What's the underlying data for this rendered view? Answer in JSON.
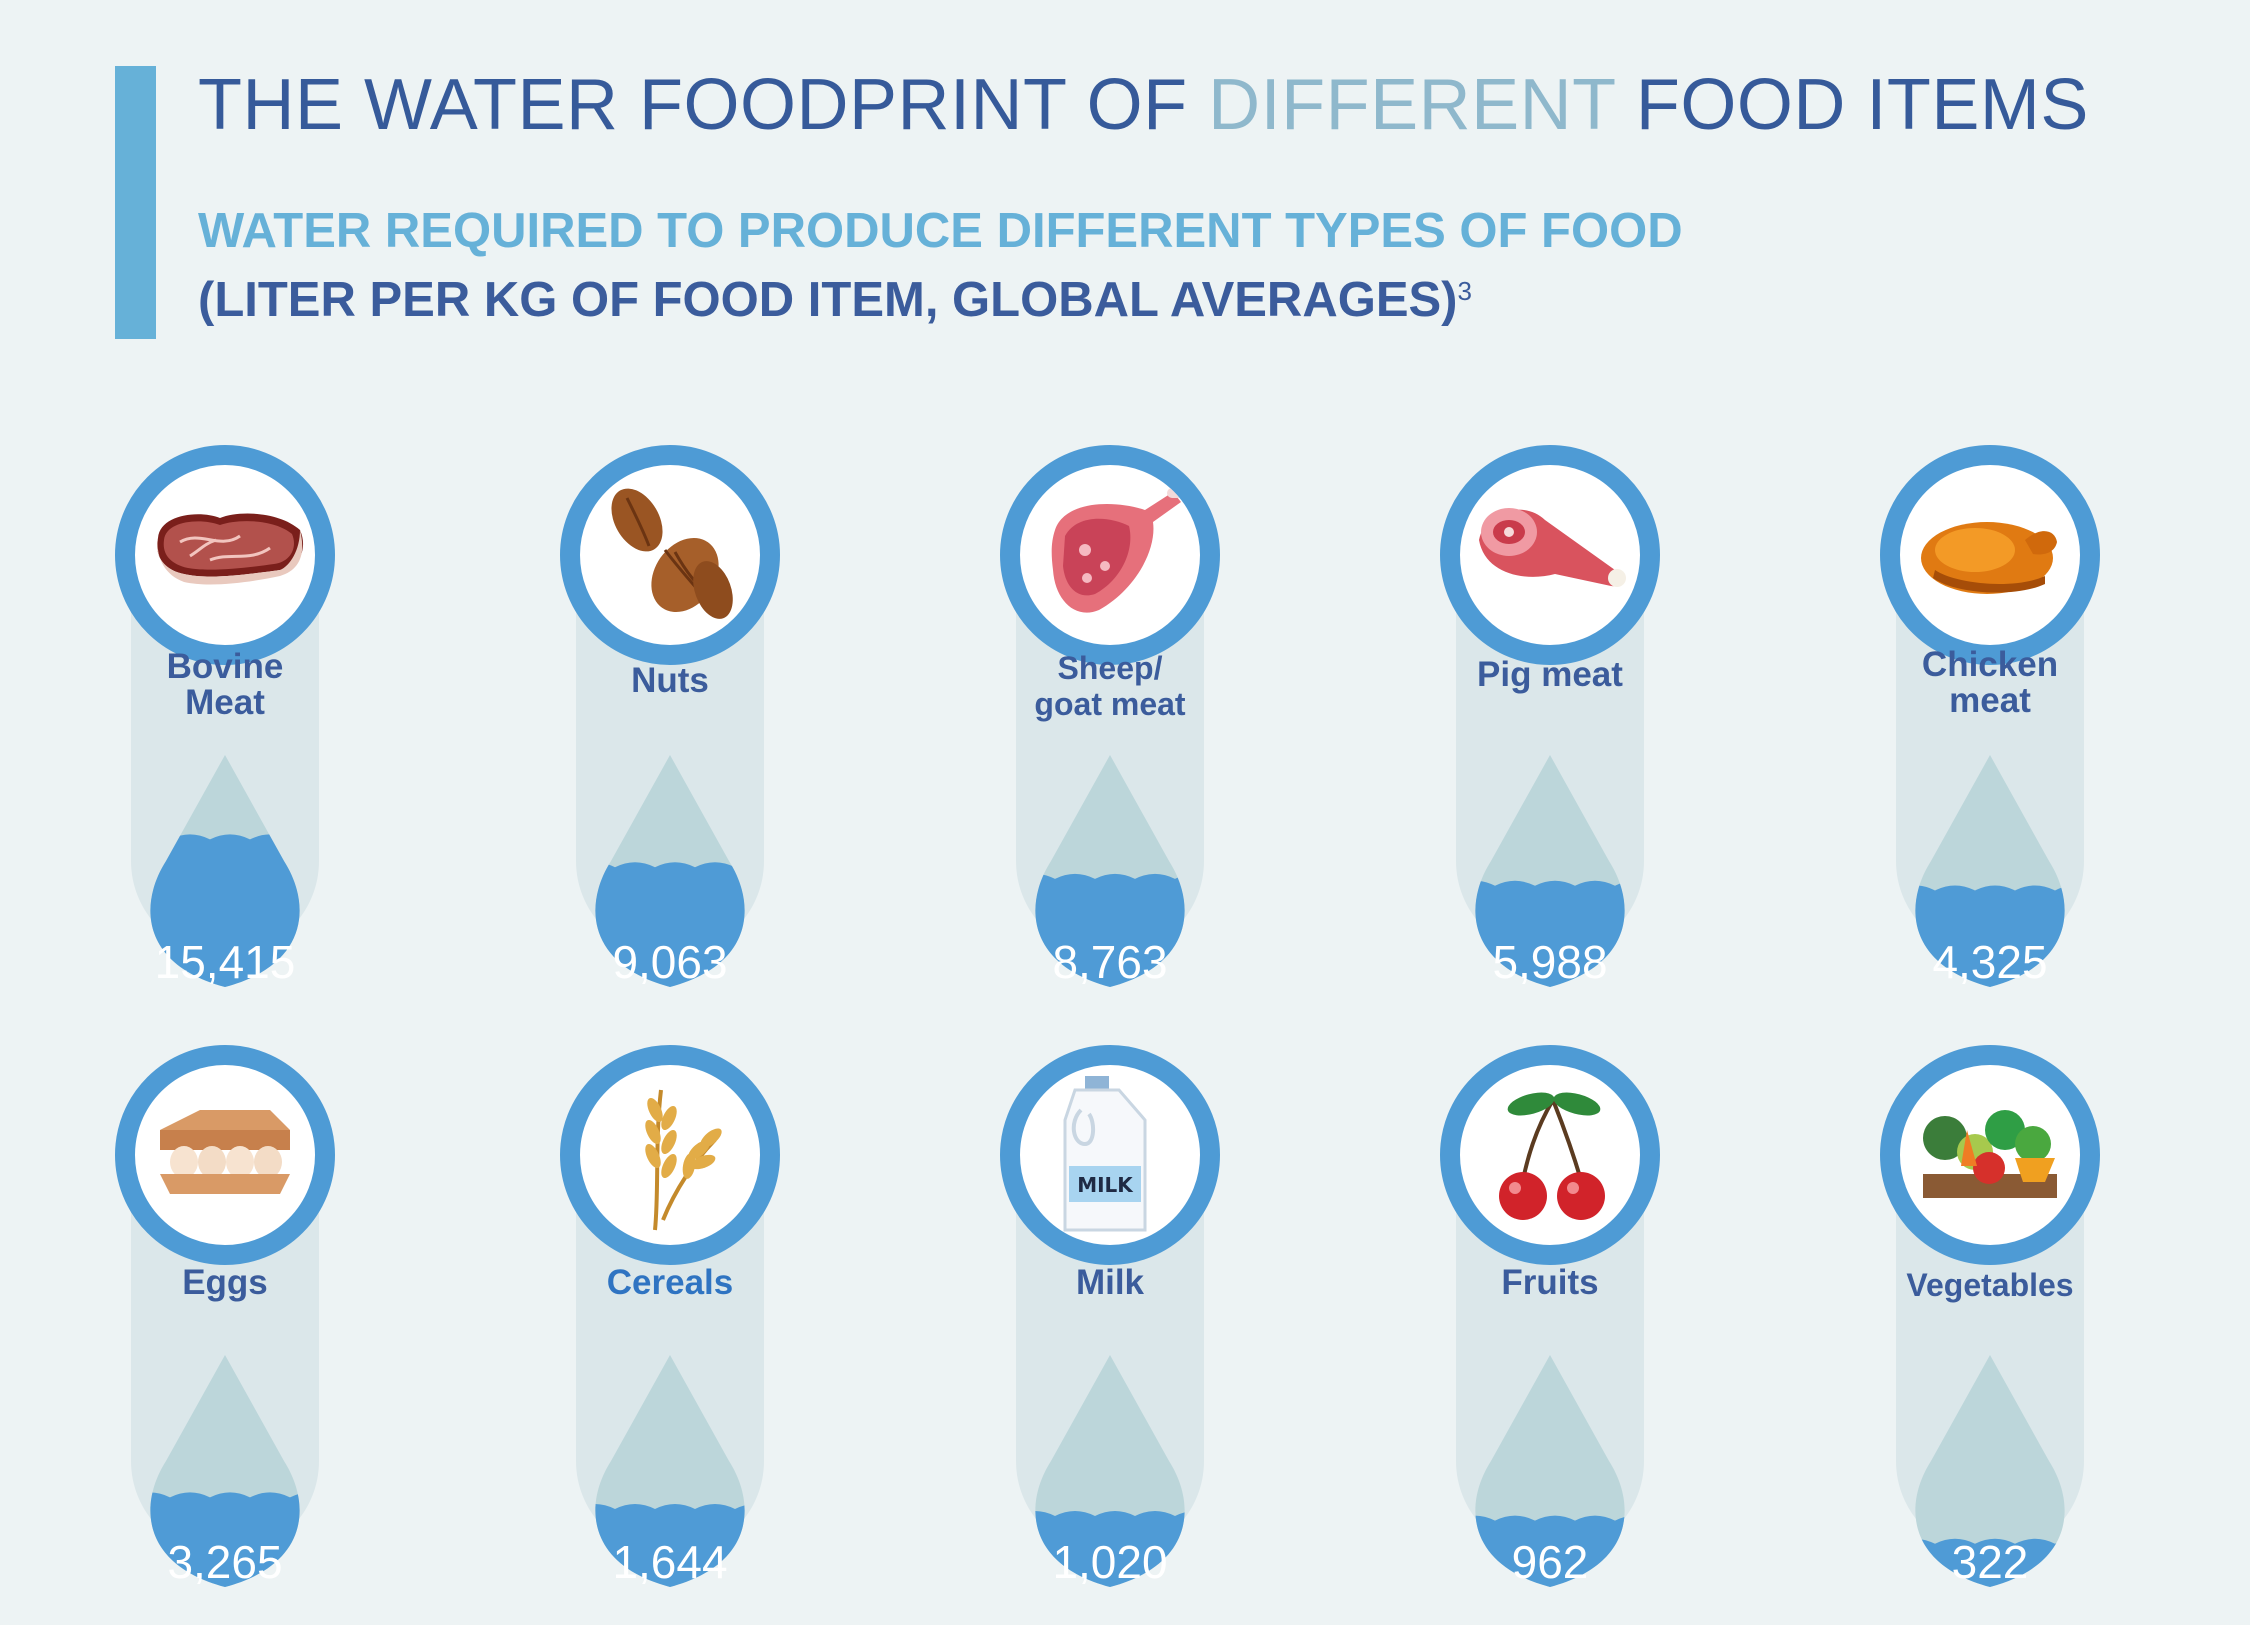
{
  "header": {
    "title_part1": "THE WATER FOODPRINT OF ",
    "title_highlight": "DIFFERENT",
    "title_part2": " FOOD ITEMS",
    "subtitle": "WATER REQUIRED TO PRODUCE DIFFERENT TYPES OF FOOD",
    "units": "(LITER PER KG OF FOOD ITEM, GLOBAL AVERAGES)",
    "footnote": "3"
  },
  "colors": {
    "title": "#365a9a",
    "highlight": "#8fb8cc",
    "subtitle": "#66b1d8",
    "ring": "#4e9bd5",
    "pill": "#dbe7ea",
    "drop_empty": "#bcd6da",
    "drop_water": "#4f9bd6"
  },
  "items": [
    {
      "label": "Bovine\nMeat",
      "value": "15,415",
      "fill": 0.55,
      "icon": "steak-icon"
    },
    {
      "label": "Nuts",
      "value": "9,063",
      "fill": 0.43,
      "icon": "almonds-icon"
    },
    {
      "label": "Sheep/\ngoat meat",
      "value": "8,763",
      "fill": 0.38,
      "icon": "lamb-leg-icon"
    },
    {
      "label": "Pig meat",
      "value": "5,988",
      "fill": 0.35,
      "icon": "ham-icon"
    },
    {
      "label": "Chicken\nmeat",
      "value": "4,325",
      "fill": 0.33,
      "icon": "roast-chicken-icon"
    },
    {
      "label": "Eggs",
      "value": "3,265",
      "fill": 0.3,
      "icon": "egg-carton-icon"
    },
    {
      "label": "Cereals",
      "value": "1,644",
      "fill": 0.25,
      "icon": "wheat-icon"
    },
    {
      "label": "Milk",
      "value": "1,020",
      "fill": 0.22,
      "icon": "milk-jug-icon",
      "icon_text": "MILK"
    },
    {
      "label": "Fruits",
      "value": "962",
      "fill": 0.2,
      "icon": "cherries-icon"
    },
    {
      "label": "Vegetables",
      "value": "322",
      "fill": 0.1,
      "icon": "vegetable-crate-icon"
    }
  ]
}
